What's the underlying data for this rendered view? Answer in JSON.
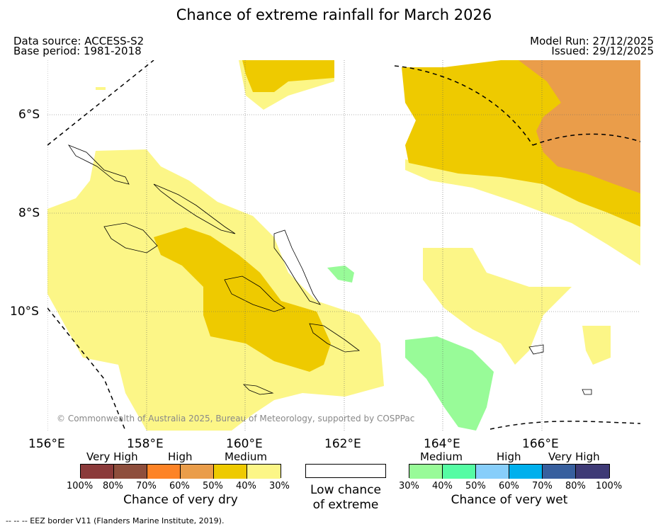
{
  "title": "Chance of extreme rainfall for March 2026",
  "data_source": "Data source: ACCESS-S2",
  "base_period": "Base period: 1981-2018",
  "model_run": "Model Run: 27/12/2025",
  "issued": "Issued: 29/12/2025",
  "axes": {
    "lon_labels": [
      "156°E",
      "158°E",
      "160°E",
      "162°E",
      "164°E",
      "166°E"
    ],
    "lat_labels": [
      "6°S",
      "8°S",
      "10°S"
    ]
  },
  "copyright": "© Commonwealth of Australia 2025, Bureau of Meteorology, supported by COSPPac",
  "legend": {
    "dry": {
      "groups": [
        "Very High",
        "High",
        "Medium"
      ],
      "colors": [
        "#8b3a3a",
        "#8e4e3c",
        "#fd8326",
        "#ea9d4a",
        "#eeca00",
        "#fcf687"
      ],
      "ticks": [
        "100%",
        "80%",
        "70%",
        "60%",
        "50%",
        "40%",
        "30%"
      ],
      "caption": "Chance of very dry"
    },
    "low": {
      "color": "#ffffff",
      "caption_line1": "Low chance",
      "caption_line2": "of extreme"
    },
    "wet": {
      "groups": [
        "Medium",
        "High",
        "Very High"
      ],
      "colors": [
        "#98fb98",
        "#55fca3",
        "#87cefa",
        "#00b0ed",
        "#375f9e",
        "#3e3a76"
      ],
      "ticks": [
        "30%",
        "40%",
        "50%",
        "60%",
        "70%",
        "80%",
        "100%"
      ],
      "caption": "Chance of very wet"
    }
  },
  "footnote": "--  --  -- EEZ border V11 (Flanders Marine Institute, 2019)."
}
